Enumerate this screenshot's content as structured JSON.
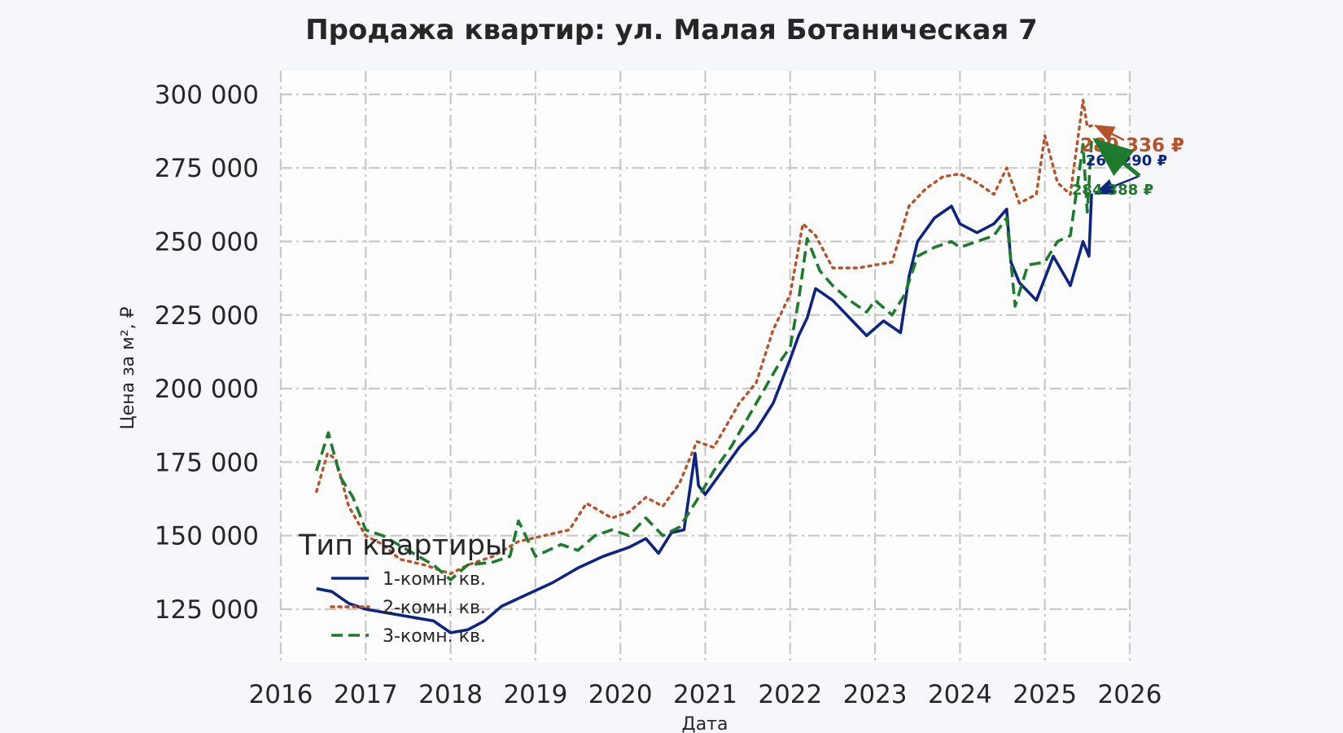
{
  "chart_data": {
    "type": "line",
    "title": "Продажа квартир: ул. Малая Ботаническая 7",
    "xlabel": "Дата",
    "ylabel": "Цена за м², ₽",
    "x_ticks": [
      "2016",
      "2017",
      "2018",
      "2019",
      "2020",
      "2021",
      "2022",
      "2023",
      "2024",
      "2025",
      "2026"
    ],
    "y_ticks": [
      "125 000",
      "150 000",
      "175 000",
      "200 000",
      "225 000",
      "250 000",
      "275 000",
      "300 000"
    ],
    "xlim": [
      2016.0,
      2026.0
    ],
    "ylim": [
      107000,
      308000
    ],
    "grid": true,
    "legend": {
      "title": "Тип квартиры",
      "position": "lower-left"
    },
    "series": [
      {
        "name": "1-комн. кв.",
        "color": "#0d2580",
        "dash": "solid",
        "x": [
          2016.42,
          2016.6,
          2016.8,
          2017.0,
          2017.2,
          2017.4,
          2017.6,
          2017.8,
          2018.0,
          2018.2,
          2018.4,
          2018.6,
          2018.9,
          2019.2,
          2019.5,
          2019.8,
          2020.1,
          2020.3,
          2020.45,
          2020.6,
          2020.75,
          2020.88,
          2020.92,
          2021.0,
          2021.2,
          2021.4,
          2021.6,
          2021.8,
          2022.0,
          2022.1,
          2022.2,
          2022.3,
          2022.5,
          2022.7,
          2022.9,
          2023.1,
          2023.3,
          2023.4,
          2023.5,
          2023.7,
          2023.9,
          2024.0,
          2024.2,
          2024.4,
          2024.55,
          2024.6,
          2024.7,
          2024.9,
          2025.1,
          2025.3,
          2025.45,
          2025.52,
          2025.55
        ],
        "y": [
          132000,
          131000,
          127000,
          125000,
          124000,
          123000,
          122000,
          121000,
          117000,
          118000,
          121000,
          126000,
          130000,
          134000,
          139000,
          143000,
          146000,
          149000,
          144000,
          151000,
          152000,
          178000,
          167000,
          164000,
          172000,
          180000,
          186000,
          195000,
          210000,
          218000,
          224000,
          234000,
          230000,
          224000,
          218000,
          223000,
          219000,
          238000,
          250000,
          258000,
          262000,
          256000,
          253000,
          256000,
          261000,
          243000,
          236000,
          230000,
          245000,
          235000,
          250000,
          245000,
          266290
        ]
      },
      {
        "name": "2-комн. кв.",
        "color": "#b5532a",
        "dash": "dotted",
        "x": [
          2016.42,
          2016.55,
          2016.65,
          2016.8,
          2017.0,
          2017.2,
          2017.4,
          2017.7,
          2018.0,
          2018.2,
          2018.5,
          2018.8,
          2019.1,
          2019.4,
          2019.6,
          2019.9,
          2020.1,
          2020.3,
          2020.5,
          2020.7,
          2020.9,
          2021.1,
          2021.4,
          2021.6,
          2021.8,
          2022.0,
          2022.15,
          2022.3,
          2022.5,
          2022.8,
          2023.0,
          2023.2,
          2023.4,
          2023.6,
          2023.8,
          2024.0,
          2024.2,
          2024.4,
          2024.55,
          2024.7,
          2024.9,
          2025.0,
          2025.15,
          2025.3,
          2025.45,
          2025.5,
          2025.55
        ],
        "y": [
          165000,
          178000,
          176000,
          160000,
          150000,
          147000,
          142000,
          140000,
          137000,
          140000,
          143000,
          148000,
          150000,
          152000,
          161000,
          156000,
          158000,
          163000,
          160000,
          168000,
          182000,
          180000,
          195000,
          202000,
          220000,
          232000,
          256000,
          252000,
          241000,
          241000,
          242000,
          243000,
          262000,
          268000,
          272000,
          273000,
          270000,
          266000,
          275000,
          263000,
          266000,
          286000,
          270000,
          266000,
          298000,
          289000,
          289336
        ]
      },
      {
        "name": "3-комн. кв.",
        "color": "#1e7a2c",
        "dash": "dashed",
        "x": [
          2016.42,
          2016.56,
          2016.7,
          2016.85,
          2017.0,
          2017.2,
          2017.5,
          2017.8,
          2018.0,
          2018.2,
          2018.5,
          2018.7,
          2018.8,
          2019.0,
          2019.3,
          2019.5,
          2019.7,
          2019.9,
          2020.1,
          2020.3,
          2020.5,
          2020.7,
          2020.9,
          2021.1,
          2021.3,
          2021.5,
          2021.7,
          2021.9,
          2022.0,
          2022.1,
          2022.2,
          2022.35,
          2022.5,
          2022.7,
          2022.9,
          2023.0,
          2023.2,
          2023.35,
          2023.5,
          2023.7,
          2023.9,
          2024.0,
          2024.2,
          2024.4,
          2024.55,
          2024.65,
          2024.8,
          2025.0,
          2025.15,
          2025.3,
          2025.45,
          2025.5,
          2025.55
        ],
        "y": [
          172000,
          185000,
          170000,
          163000,
          152000,
          150000,
          145000,
          140000,
          135000,
          140000,
          141000,
          143000,
          155000,
          143000,
          147000,
          145000,
          150000,
          152000,
          150000,
          156000,
          150000,
          153000,
          162000,
          172000,
          180000,
          190000,
          200000,
          210000,
          214000,
          230000,
          251000,
          240000,
          235000,
          230000,
          226000,
          230000,
          225000,
          232000,
          245000,
          248000,
          250000,
          248000,
          250000,
          252000,
          258000,
          228000,
          242000,
          243000,
          250000,
          252000,
          283000,
          260000,
          284388
        ]
      }
    ],
    "annotations": [
      {
        "label": "289 336 ₽",
        "series": "2-комн. кв.",
        "value": 289336,
        "color": "#b5532a"
      },
      {
        "label": "266 290 ₽",
        "series": "1-комн. кв.",
        "value": 266290,
        "color": "#0d2580"
      },
      {
        "label": "284 388 ₽",
        "series": "3-комн. кв.",
        "value": 284388,
        "color": "#1e7a2c"
      }
    ]
  }
}
